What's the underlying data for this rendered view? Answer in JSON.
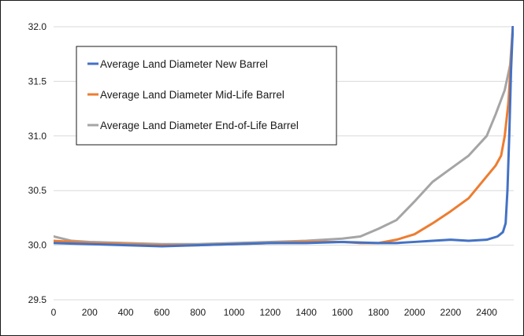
{
  "chart_data": {
    "type": "line",
    "title": "",
    "xlabel": "",
    "ylabel": "",
    "xlim": [
      0,
      2550
    ],
    "ylim": [
      29.5,
      32.0
    ],
    "x_ticks": [
      "0",
      "200",
      "400",
      "600",
      "800",
      "1000",
      "1200",
      "1400",
      "1600",
      "1800",
      "2000",
      "2200",
      "2400"
    ],
    "y_ticks": [
      "29.5",
      "30.0",
      "30.5",
      "31.0",
      "31.5",
      "32.0"
    ],
    "grid": "horizontal",
    "legend_position": "top-left",
    "series": [
      {
        "name": "Average Land Diameter New Barrel",
        "color": "#4472C4",
        "points": [
          [
            0,
            30.02
          ],
          [
            200,
            30.01
          ],
          [
            400,
            30.0
          ],
          [
            600,
            29.99
          ],
          [
            800,
            30.0
          ],
          [
            1000,
            30.01
          ],
          [
            1200,
            30.02
          ],
          [
            1400,
            30.02
          ],
          [
            1600,
            30.03
          ],
          [
            1800,
            30.02
          ],
          [
            1900,
            30.02
          ],
          [
            2000,
            30.03
          ],
          [
            2100,
            30.04
          ],
          [
            2200,
            30.05
          ],
          [
            2300,
            30.04
          ],
          [
            2400,
            30.05
          ],
          [
            2460,
            30.08
          ],
          [
            2490,
            30.12
          ],
          [
            2505,
            30.2
          ],
          [
            2515,
            30.5
          ],
          [
            2525,
            31.0
          ],
          [
            2535,
            31.6
          ],
          [
            2545,
            32.0
          ]
        ]
      },
      {
        "name": "Average Land Diameter Mid-Life Barrel",
        "color": "#ED7D31",
        "points": [
          [
            0,
            30.04
          ],
          [
            200,
            30.02
          ],
          [
            400,
            30.01
          ],
          [
            600,
            30.0
          ],
          [
            800,
            30.0
          ],
          [
            1000,
            30.01
          ],
          [
            1200,
            30.02
          ],
          [
            1400,
            30.03
          ],
          [
            1600,
            30.03
          ],
          [
            1700,
            30.02
          ],
          [
            1800,
            30.02
          ],
          [
            1900,
            30.05
          ],
          [
            2000,
            30.1
          ],
          [
            2100,
            30.2
          ],
          [
            2200,
            30.31
          ],
          [
            2300,
            30.43
          ],
          [
            2400,
            30.63
          ],
          [
            2450,
            30.73
          ],
          [
            2480,
            30.82
          ],
          [
            2500,
            31.0
          ],
          [
            2520,
            31.3
          ],
          [
            2535,
            31.7
          ],
          [
            2545,
            32.0
          ]
        ]
      },
      {
        "name": "Average Land Diameter End-of-Life Barrel",
        "color": "#A5A5A5",
        "points": [
          [
            0,
            30.08
          ],
          [
            100,
            30.04
          ],
          [
            200,
            30.03
          ],
          [
            400,
            30.02
          ],
          [
            600,
            30.01
          ],
          [
            800,
            30.01
          ],
          [
            1000,
            30.02
          ],
          [
            1200,
            30.03
          ],
          [
            1400,
            30.04
          ],
          [
            1600,
            30.06
          ],
          [
            1700,
            30.08
          ],
          [
            1800,
            30.15
          ],
          [
            1900,
            30.23
          ],
          [
            2000,
            30.4
          ],
          [
            2100,
            30.58
          ],
          [
            2200,
            30.7
          ],
          [
            2300,
            30.82
          ],
          [
            2400,
            31.0
          ],
          [
            2450,
            31.2
          ],
          [
            2500,
            31.42
          ],
          [
            2530,
            31.65
          ],
          [
            2545,
            32.0
          ]
        ]
      }
    ]
  }
}
